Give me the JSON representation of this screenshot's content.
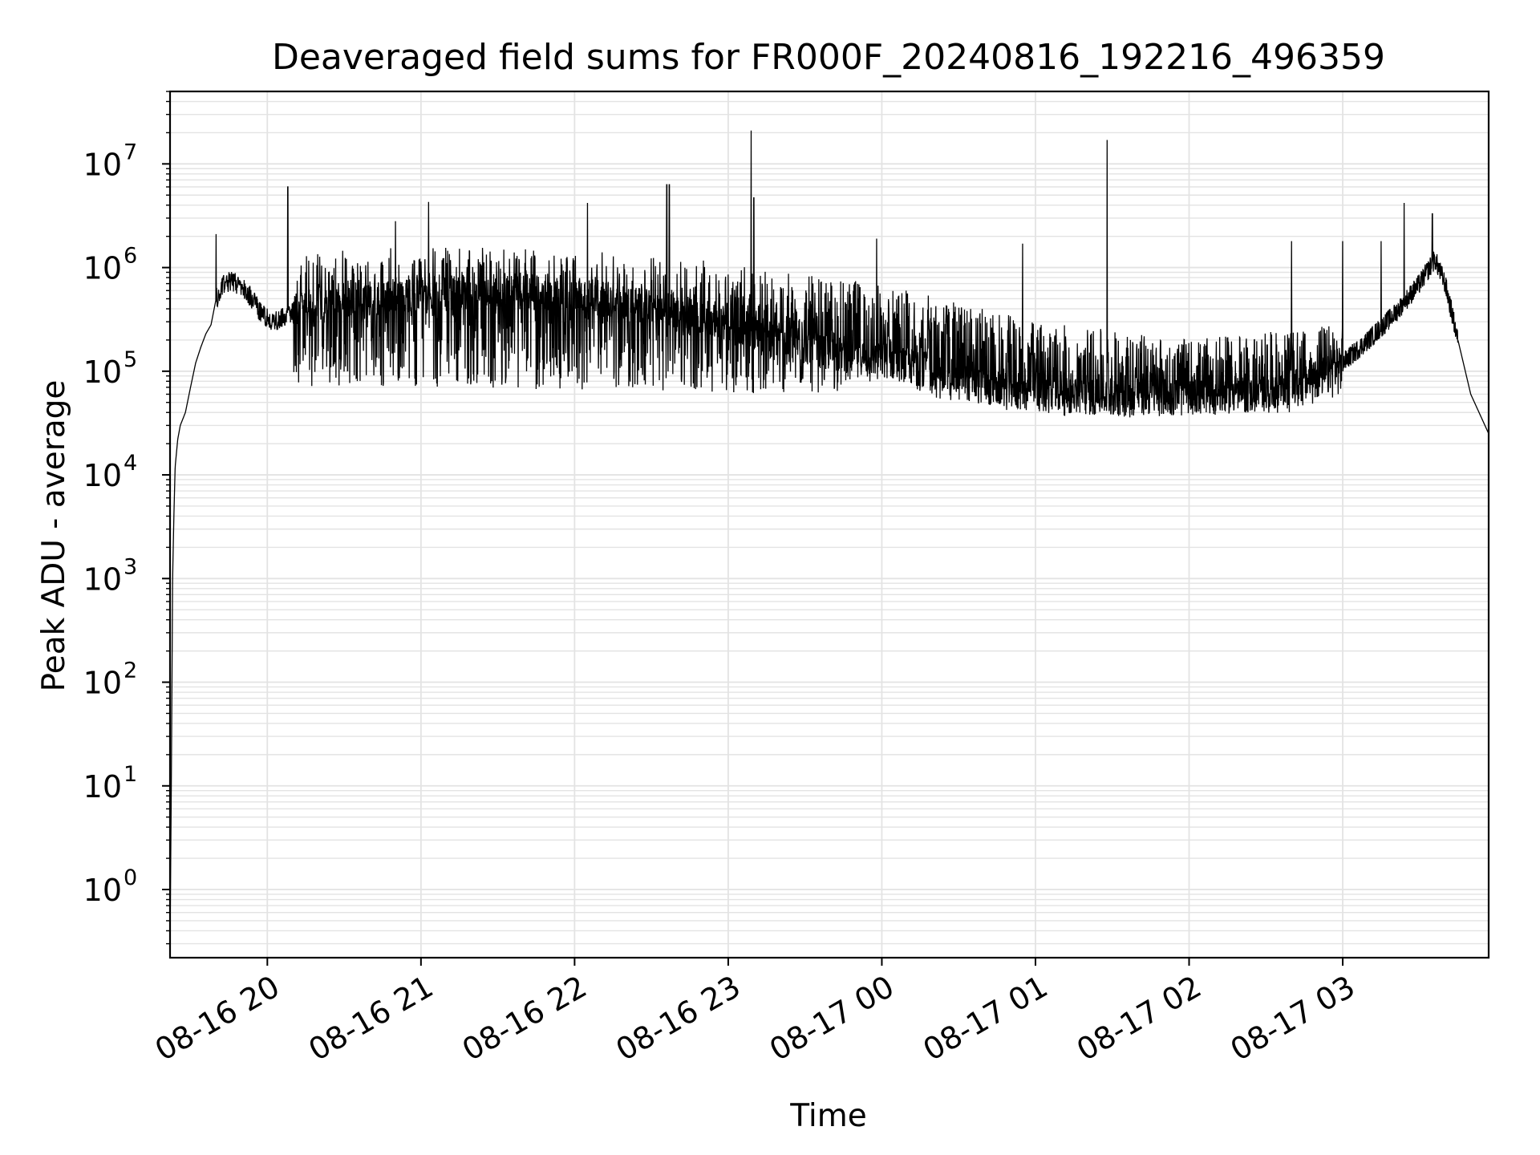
{
  "chart_data": {
    "type": "line",
    "title": "Deaveraged field sums for FR000F_20240816_192216_496359",
    "xlabel": "Time",
    "ylabel": "Peak ADU - average",
    "yscale": "log",
    "ylim": [
      0.22,
      50000000
    ],
    "xlim": [
      "2024-08-16 19:22",
      "2024-08-17 03:57"
    ],
    "grid": true,
    "grid_minor": true,
    "line_color": "#000000",
    "grid_color": "#e3e3e3",
    "xticks": [
      {
        "t": "2024-08-16 20:00",
        "label": "08-16 20"
      },
      {
        "t": "2024-08-16 21:00",
        "label": "08-16 21"
      },
      {
        "t": "2024-08-16 22:00",
        "label": "08-16 22"
      },
      {
        "t": "2024-08-16 23:00",
        "label": "08-16 23"
      },
      {
        "t": "2024-08-17 00:00",
        "label": "08-17 00"
      },
      {
        "t": "2024-08-17 01:00",
        "label": "08-17 01"
      },
      {
        "t": "2024-08-17 02:00",
        "label": "08-17 02"
      },
      {
        "t": "2024-08-17 03:00",
        "label": "08-17 03"
      }
    ],
    "yticks": [
      {
        "value": 1,
        "base": "10",
        "exp": "0"
      },
      {
        "value": 10,
        "base": "10",
        "exp": "1"
      },
      {
        "value": 100,
        "base": "10",
        "exp": "2"
      },
      {
        "value": 1000,
        "base": "10",
        "exp": "3"
      },
      {
        "value": 10000,
        "base": "10",
        "exp": "4"
      },
      {
        "value": 100000,
        "base": "10",
        "exp": "5"
      },
      {
        "value": 1000000,
        "base": "10",
        "exp": "6"
      },
      {
        "value": 10000000,
        "base": "10",
        "exp": "7"
      }
    ],
    "series": [
      {
        "points": [
          [
            "2024-08-16 19:22",
            0.3
          ],
          [
            "2024-08-16 19:22:30",
            10
          ],
          [
            "2024-08-16 19:23",
            1000
          ],
          [
            "2024-08-16 19:23:30",
            4000
          ],
          [
            "2024-08-16 19:24",
            12000
          ],
          [
            "2024-08-16 19:25",
            22000
          ],
          [
            "2024-08-16 19:26",
            30000
          ],
          [
            "2024-08-16 19:28",
            40000
          ],
          [
            "2024-08-16 19:30",
            70000
          ],
          [
            "2024-08-16 19:32",
            120000
          ],
          [
            "2024-08-16 19:34",
            170000
          ],
          [
            "2024-08-16 19:36",
            230000
          ],
          [
            "2024-08-16 19:38",
            280000
          ],
          [
            "2024-08-16 19:40",
            500000
          ],
          [
            "2024-08-16 19:43",
            700000
          ],
          [
            "2024-08-16 19:46",
            750000
          ],
          [
            "2024-08-16 19:50",
            650000
          ],
          [
            "2024-08-16 19:54",
            500000
          ],
          [
            "2024-08-16 19:58",
            350000
          ],
          [
            "2024-08-16 20:02",
            300000
          ],
          [
            "2024-08-16 20:08",
            350000
          ],
          [
            "2024-08-16 20:15",
            450000
          ],
          [
            "2024-08-16 20:30",
            500000
          ],
          [
            "2024-08-16 21:00",
            550000
          ],
          [
            "2024-08-16 21:30",
            600000
          ],
          [
            "2024-08-16 22:00",
            550000
          ],
          [
            "2024-08-16 22:30",
            420000
          ],
          [
            "2024-08-16 23:00",
            300000
          ],
          [
            "2024-08-16 23:20",
            200000
          ],
          [
            "2024-08-16 23:40",
            150000
          ],
          [
            "2024-08-17 00:00",
            130000
          ],
          [
            "2024-08-17 00:20",
            100000
          ],
          [
            "2024-08-17 00:40",
            70000
          ],
          [
            "2024-08-17 01:00",
            60000
          ],
          [
            "2024-08-17 01:30",
            55000
          ],
          [
            "2024-08-17 02:00",
            55000
          ],
          [
            "2024-08-17 02:30",
            60000
          ],
          [
            "2024-08-17 02:50",
            80000
          ],
          [
            "2024-08-17 03:00",
            120000
          ],
          [
            "2024-08-17 03:10",
            200000
          ],
          [
            "2024-08-17 03:20",
            350000
          ],
          [
            "2024-08-17 03:30",
            700000
          ],
          [
            "2024-08-17 03:36",
            1200000
          ],
          [
            "2024-08-17 03:40",
            700000
          ],
          [
            "2024-08-17 03:45",
            200000
          ],
          [
            "2024-08-17 03:50",
            60000
          ],
          [
            "2024-08-17 03:57",
            25000
          ]
        ],
        "spikes": [
          [
            "2024-08-16 19:40",
            2100000
          ],
          [
            "2024-08-16 20:08",
            6000000
          ],
          [
            "2024-08-16 20:50",
            2800000
          ],
          [
            "2024-08-16 21:03",
            4300000
          ],
          [
            "2024-08-16 22:05",
            4200000
          ],
          [
            "2024-08-16 22:36",
            6300000
          ],
          [
            "2024-08-16 22:37",
            6300000
          ],
          [
            "2024-08-16 23:09",
            21000000
          ],
          [
            "2024-08-16 23:10",
            4700000
          ],
          [
            "2024-08-16 23:58",
            1900000
          ],
          [
            "2024-08-17 00:55",
            1700000
          ],
          [
            "2024-08-17 01:28",
            17000000
          ],
          [
            "2024-08-17 02:40",
            1800000
          ],
          [
            "2024-08-17 03:00",
            1800000
          ],
          [
            "2024-08-17 03:15",
            1800000
          ],
          [
            "2024-08-17 03:24",
            4200000
          ],
          [
            "2024-08-17 03:35",
            3300000
          ]
        ],
        "band_high": [
          [
            "2024-08-16 20:10",
            1400000
          ],
          [
            "2024-08-16 21:00",
            1600000
          ],
          [
            "2024-08-16 22:00",
            1500000
          ],
          [
            "2024-08-16 22:40",
            1300000
          ],
          [
            "2024-08-16 23:20",
            900000
          ],
          [
            "2024-08-17 00:00",
            700000
          ],
          [
            "2024-08-17 00:40",
            400000
          ],
          [
            "2024-08-17 01:00",
            300000
          ],
          [
            "2024-08-17 01:30",
            250000
          ],
          [
            "2024-08-17 02:00",
            200000
          ],
          [
            "2024-08-17 02:40",
            250000
          ],
          [
            "2024-08-17 03:00",
            300000
          ]
        ],
        "band_low": [
          [
            "2024-08-16 20:10",
            70000
          ],
          [
            "2024-08-16 21:00",
            70000
          ],
          [
            "2024-08-16 22:00",
            65000
          ],
          [
            "2024-08-16 22:40",
            65000
          ],
          [
            "2024-08-16 23:20",
            60000
          ],
          [
            "2024-08-17 00:00",
            65000
          ],
          [
            "2024-08-17 00:40",
            45000
          ],
          [
            "2024-08-17 01:00",
            38000
          ],
          [
            "2024-08-17 01:30",
            35000
          ],
          [
            "2024-08-17 02:00",
            38000
          ],
          [
            "2024-08-17 02:40",
            40000
          ],
          [
            "2024-08-17 03:00",
            60000
          ]
        ]
      }
    ]
  }
}
